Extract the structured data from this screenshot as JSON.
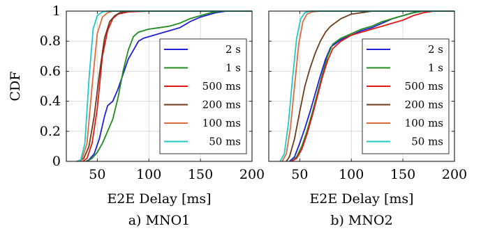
{
  "chart_data": [
    {
      "type": "line",
      "caption": "a) MNO1",
      "xlabel": "E2E Delay [ms]",
      "ylabel": "CDF",
      "xlim": [
        20,
        200
      ],
      "ylim": [
        0,
        1
      ],
      "xticks": [
        50,
        100,
        150,
        200
      ],
      "yticks": [
        0,
        0.2,
        0.4,
        0.6,
        0.8,
        1
      ],
      "grid": true,
      "legend_position": "right",
      "series": [
        {
          "name": "2 s",
          "color": "#1f1fd6",
          "x": [
            39,
            42,
            47,
            52,
            57,
            60,
            65,
            70,
            75,
            80,
            85,
            90,
            95,
            100,
            110,
            120,
            130,
            140,
            150,
            160,
            165,
            175,
            200
          ],
          "y": [
            0,
            0.01,
            0.05,
            0.15,
            0.3,
            0.37,
            0.4,
            0.48,
            0.58,
            0.68,
            0.74,
            0.8,
            0.82,
            0.83,
            0.85,
            0.87,
            0.89,
            0.93,
            0.96,
            0.98,
            0.99,
            1,
            1
          ]
        },
        {
          "name": "1 s",
          "color": "#1e8c1e",
          "x": [
            40,
            45,
            50,
            55,
            60,
            65,
            70,
            75,
            80,
            85,
            90,
            100,
            110,
            120,
            130,
            140,
            150,
            160,
            170,
            200
          ],
          "y": [
            0,
            0.02,
            0.06,
            0.12,
            0.2,
            0.28,
            0.42,
            0.6,
            0.74,
            0.83,
            0.86,
            0.88,
            0.89,
            0.9,
            0.92,
            0.95,
            0.97,
            0.99,
            1,
            1
          ]
        },
        {
          "name": "500 ms",
          "color": "#e01818",
          "x": [
            36,
            40,
            45,
            50,
            55,
            60,
            65,
            70,
            80,
            100,
            150,
            200
          ],
          "y": [
            0,
            0.02,
            0.12,
            0.35,
            0.7,
            0.87,
            0.95,
            0.98,
            0.995,
            1,
            1,
            1
          ]
        },
        {
          "name": "200 ms",
          "color": "#6e3a1a",
          "x": [
            33,
            37,
            42,
            47,
            52,
            57,
            62,
            67,
            72,
            80,
            100,
            200
          ],
          "y": [
            0,
            0.02,
            0.1,
            0.3,
            0.58,
            0.82,
            0.93,
            0.97,
            0.99,
            1,
            1,
            1
          ]
        },
        {
          "name": "100 ms",
          "color": "#e2693a",
          "x": [
            30,
            35,
            40,
            45,
            50,
            55,
            60,
            65,
            75,
            100,
            200
          ],
          "y": [
            0,
            0.01,
            0.12,
            0.5,
            0.85,
            0.96,
            0.99,
            1,
            1,
            1,
            1
          ]
        },
        {
          "name": "50 ms",
          "color": "#22c8c8",
          "x": [
            30,
            34,
            38,
            42,
            46,
            50,
            55,
            60,
            70,
            100,
            200
          ],
          "y": [
            0,
            0.01,
            0.12,
            0.55,
            0.88,
            0.97,
            0.995,
            1,
            1,
            1,
            1
          ]
        }
      ]
    },
    {
      "type": "line",
      "caption": "b) MNO2",
      "xlabel": "E2E Delay [ms]",
      "ylabel": "",
      "xlim": [
        20,
        200
      ],
      "ylim": [
        0,
        1
      ],
      "xticks": [
        50,
        100,
        150,
        200
      ],
      "yticks": [
        0,
        0.2,
        0.4,
        0.6,
        0.8,
        1
      ],
      "grid": true,
      "legend_position": "right",
      "series": [
        {
          "name": "2 s",
          "color": "#1f1fd6",
          "x": [
            40,
            45,
            50,
            55,
            60,
            65,
            70,
            75,
            80,
            90,
            100,
            110,
            120,
            130,
            140,
            150,
            160,
            170,
            200
          ],
          "y": [
            0,
            0.03,
            0.12,
            0.22,
            0.33,
            0.45,
            0.57,
            0.68,
            0.76,
            0.81,
            0.84,
            0.87,
            0.89,
            0.92,
            0.95,
            0.97,
            0.99,
            1,
            1
          ]
        },
        {
          "name": "1 s",
          "color": "#1e8c1e",
          "x": [
            42,
            47,
            52,
            57,
            62,
            67,
            72,
            77,
            82,
            90,
            100,
            110,
            120,
            130,
            140,
            150,
            160,
            170,
            200
          ],
          "y": [
            0,
            0.03,
            0.1,
            0.2,
            0.32,
            0.45,
            0.58,
            0.7,
            0.78,
            0.82,
            0.85,
            0.88,
            0.9,
            0.93,
            0.95,
            0.97,
            0.99,
            1,
            1
          ]
        },
        {
          "name": "500 ms",
          "color": "#e01818",
          "x": [
            42,
            47,
            52,
            57,
            62,
            67,
            72,
            77,
            82,
            90,
            100,
            110,
            120,
            130,
            140,
            150,
            160,
            170,
            180,
            200
          ],
          "y": [
            0,
            0.02,
            0.08,
            0.18,
            0.3,
            0.43,
            0.56,
            0.67,
            0.75,
            0.8,
            0.84,
            0.86,
            0.88,
            0.9,
            0.92,
            0.94,
            0.97,
            0.99,
            1,
            1
          ]
        },
        {
          "name": "200 ms",
          "color": "#6e3a1a",
          "x": [
            37,
            40,
            45,
            50,
            55,
            60,
            65,
            70,
            75,
            80,
            90,
            100,
            110,
            120,
            200
          ],
          "y": [
            0,
            0.03,
            0.15,
            0.33,
            0.5,
            0.62,
            0.72,
            0.8,
            0.86,
            0.9,
            0.95,
            0.98,
            0.99,
            1,
            1
          ]
        },
        {
          "name": "100 ms",
          "color": "#e2693a",
          "x": [
            33,
            37,
            41,
            45,
            49,
            53,
            57,
            62,
            70,
            100,
            200
          ],
          "y": [
            0,
            0.05,
            0.22,
            0.5,
            0.78,
            0.93,
            0.98,
            0.995,
            1,
            1,
            1
          ]
        },
        {
          "name": "50 ms",
          "color": "#22c8c8",
          "x": [
            31,
            35,
            39,
            43,
            47,
            51,
            55,
            60,
            70,
            100,
            200
          ],
          "y": [
            0,
            0.05,
            0.25,
            0.55,
            0.82,
            0.95,
            0.99,
            1,
            1,
            1,
            1
          ]
        }
      ]
    }
  ]
}
